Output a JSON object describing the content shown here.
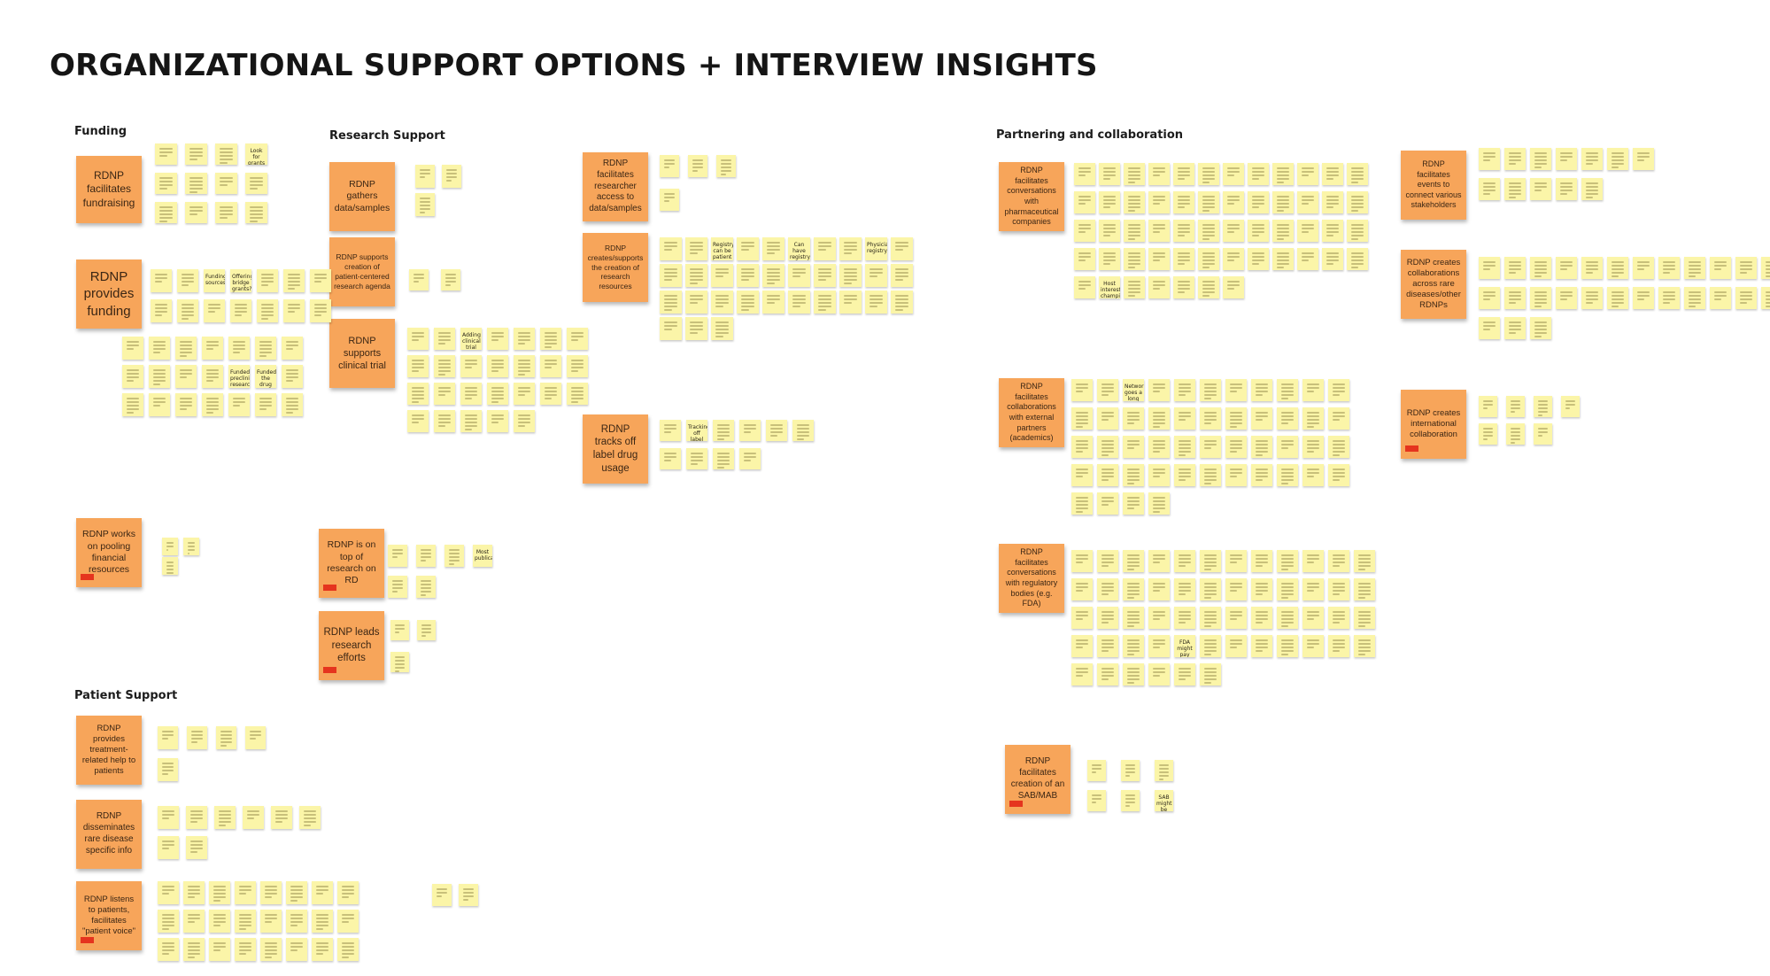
{
  "title": "ORGANIZATIONAL SUPPORT OPTIONS + INTERVIEW INSIGHTS",
  "sections": {
    "funding": "Funding",
    "research": "Research Support",
    "partnering": "Partnering and collaboration",
    "patient": "Patient Support"
  },
  "categories": {
    "c01": "RDNP facilitates fundraising",
    "c02": "RDNP provides funding",
    "c03": "RDNP works on pooling financial resources",
    "c04": "RDNP gathers data/samples",
    "c05": "RDNP supports creation of patient-centered research agenda",
    "c06": "RDNP supports clinical trial",
    "c07": "RDNP facilitates researcher access to data/samples",
    "c08": "RDNP creates/supports the creation of research resources",
    "c09": "RDNP tracks off label drug usage",
    "c10": "RDNP is on top of research on RD",
    "c11": "RDNP leads research efforts",
    "c12": "RDNP facilitates conversations with pharmaceutical companies",
    "c13": "RDNP facilitates collaborations with external partners (academics)",
    "c14": "RDNP facilitates conversations with regulatory bodies (e.g. FDA)",
    "c15": "RDNP facilitates creation of an SAB/MAB",
    "c16": "RDNP facilitates events to connect various stakeholders",
    "c17": "RDNP creates collaborations across rare diseases/other RDNPs",
    "c18": "RDNP creates international collaboration",
    "c19": "RDNP provides treatment-related help to patients",
    "c20": "RDNP disseminates rare disease specific info",
    "c21": "RDNP listens to patients, facilitates \"patient voice\""
  },
  "notes": {
    "n01": "Look for grants e.g. Ice/SL Gov.one",
    "n02": "Offering bridge grants?",
    "n03": "Funding sources",
    "n04": "Funded preclinical research",
    "n05": "Funded the drug screen",
    "n06": "Adding clinical trial sites",
    "n07": "Registry can be patient reported",
    "n08": "Can have registry",
    "n09": "Physicians registry",
    "n10": "Tracking off label use",
    "n11": "Most publications",
    "n12": "Host interest champion",
    "n13": "Networking goes a long way",
    "n14": "FDA might pay for drugs",
    "n15": "SAB might be able to gather sort of MAB"
  }
}
